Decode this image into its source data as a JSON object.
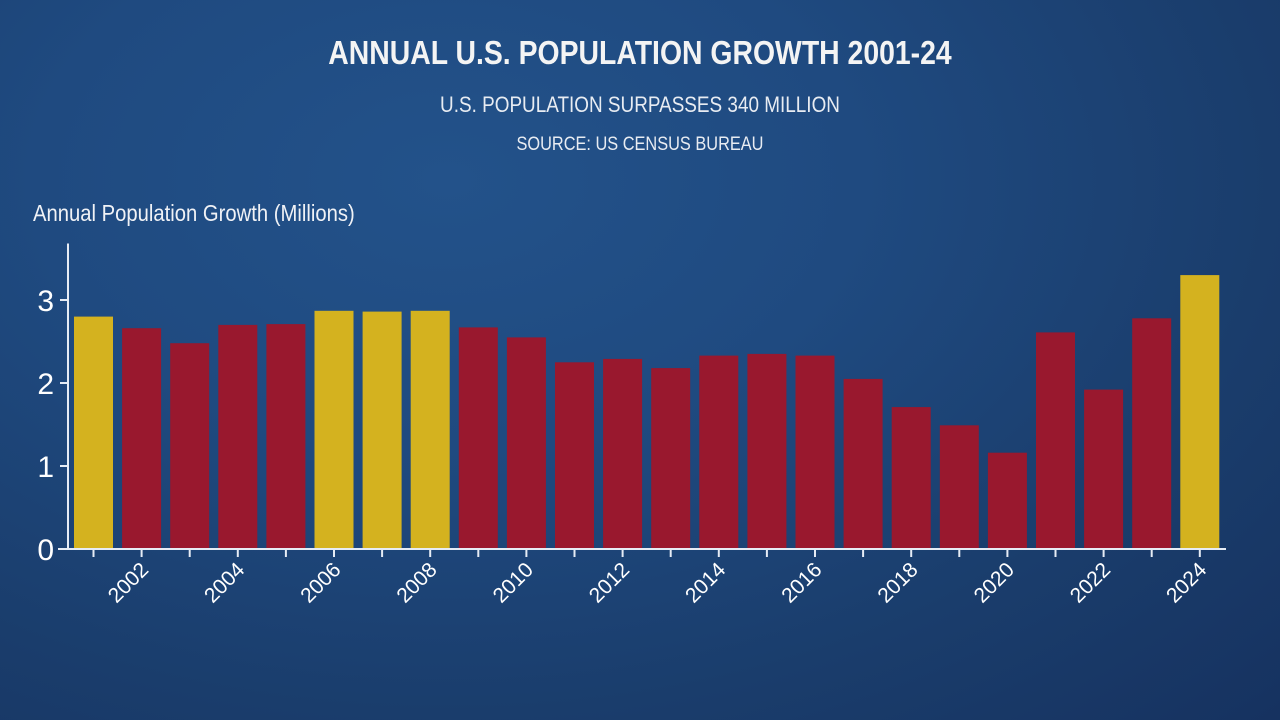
{
  "header": {
    "title": "ANNUAL U.S. POPULATION GROWTH 2001-24",
    "subtitle": "U.S. POPULATION SURPASSES 340 MILLION",
    "source": "SOURCE: US CENSUS BUREAU"
  },
  "colors": {
    "highlight": "#d4b21f",
    "normal": "#99182e",
    "axis": "#e6ecf5"
  },
  "chart_data": {
    "type": "bar",
    "title": "ANNUAL U.S. POPULATION GROWTH 2001-24",
    "subtitle": "U.S. POPULATION SURPASSES 340 MILLION",
    "source": "SOURCE: US CENSUS BUREAU",
    "xlabel": "",
    "ylabel": "Annual Population Growth (Millions)",
    "ylim": [
      0,
      3.5
    ],
    "yticks": [
      0,
      1,
      2,
      3
    ],
    "grid": false,
    "legend": "none",
    "categories": [
      "2001",
      "2002",
      "2003",
      "2004",
      "2005",
      "2006",
      "2007",
      "2008",
      "2009",
      "2010",
      "2011",
      "2012",
      "2013",
      "2014",
      "2015",
      "2016",
      "2017",
      "2018",
      "2019",
      "2020",
      "2021",
      "2022",
      "2023",
      "2024"
    ],
    "xtick_labels": [
      "2002",
      "2004",
      "2006",
      "2008",
      "2010",
      "2012",
      "2014",
      "2016",
      "2018",
      "2020",
      "2022",
      "2024"
    ],
    "values": [
      2.8,
      2.66,
      2.48,
      2.7,
      2.71,
      2.87,
      2.86,
      2.87,
      2.67,
      2.55,
      2.25,
      2.29,
      2.18,
      2.33,
      2.35,
      2.33,
      2.05,
      1.71,
      1.49,
      1.16,
      2.61,
      1.92,
      2.78,
      3.3
    ],
    "highlighted": [
      "2001",
      "2006",
      "2007",
      "2008",
      "2024"
    ]
  }
}
